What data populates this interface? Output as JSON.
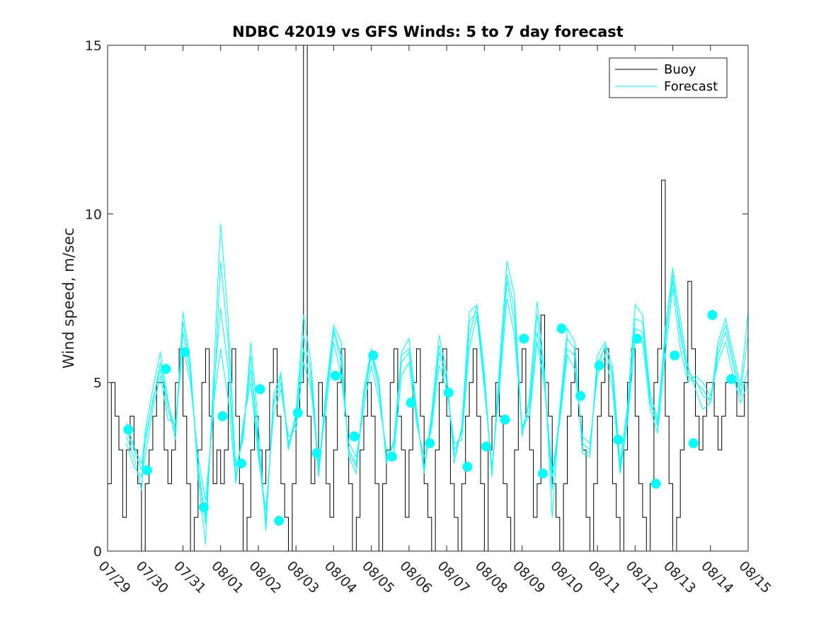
{
  "chart_data": {
    "type": "line",
    "title": "NDBC 42019 vs GFS Winds: 5 to 7 day forecast",
    "xlabel": "",
    "ylabel": "Wind speed, m/sec",
    "x_tick_labels": [
      "07/29",
      "07/30",
      "07/31",
      "08/01",
      "08/02",
      "08/03",
      "08/04",
      "08/05",
      "08/06",
      "08/07",
      "08/08",
      "08/09",
      "08/10",
      "08/11",
      "08/12",
      "08/13",
      "08/14",
      "08/15"
    ],
    "xlim": [
      "07/29",
      "08/15"
    ],
    "ylim": [
      0,
      15
    ],
    "y_ticks": [
      0,
      5,
      10,
      15
    ],
    "grid": false,
    "legend": {
      "placement": "top-right",
      "entries": [
        "Buoy",
        "Forecast"
      ]
    },
    "colors": {
      "Buoy": "#000000",
      "Forecast": "#00ffff",
      "markers": "#00ffff"
    },
    "series": [
      {
        "name": "Buoy",
        "x_days_from_07_29": [
          0.0,
          0.1,
          0.2,
          0.3,
          0.4,
          0.5,
          0.6,
          0.7,
          0.8,
          0.9,
          1.0,
          1.1,
          1.2,
          1.3,
          1.4,
          1.5,
          1.6,
          1.7,
          1.8,
          1.9,
          2.0,
          2.1,
          2.2,
          2.3,
          2.4,
          2.5,
          2.6,
          2.7,
          2.8,
          2.9,
          3.0,
          3.1,
          3.2,
          3.3,
          3.4,
          3.5,
          3.6,
          3.7,
          3.8,
          3.9,
          4.0,
          4.1,
          4.2,
          4.3,
          4.4,
          4.5,
          4.6,
          4.7,
          4.8,
          4.9,
          5.0,
          5.1,
          5.2,
          5.3,
          5.4,
          5.5,
          5.6,
          5.7,
          5.8,
          5.9,
          6.0,
          6.1,
          6.2,
          6.3,
          6.4,
          6.5,
          6.6,
          6.7,
          6.8,
          6.9,
          7.0,
          7.1,
          7.2,
          7.3,
          7.4,
          7.5,
          7.6,
          7.7,
          7.8,
          7.9,
          8.0,
          8.1,
          8.2,
          8.3,
          8.4,
          8.5,
          8.6,
          8.7,
          8.8,
          8.9,
          9.0,
          9.1,
          9.2,
          9.3,
          9.4,
          9.5,
          9.6,
          9.7,
          9.8,
          9.9,
          10.0,
          10.1,
          10.2,
          10.3,
          10.4,
          10.5,
          10.6,
          10.7,
          10.8,
          10.9,
          11.0,
          11.1,
          11.2,
          11.3,
          11.4,
          11.5,
          11.6,
          11.7,
          11.8,
          11.9,
          12.0,
          12.1,
          12.2,
          12.3,
          12.4,
          12.5,
          12.6,
          12.7,
          12.8,
          12.9,
          13.0,
          13.1,
          13.2,
          13.3,
          13.4,
          13.5,
          13.6,
          13.7,
          13.8,
          13.9,
          14.0,
          14.1,
          14.2,
          14.3,
          14.4,
          14.5,
          14.6,
          14.7,
          14.8,
          14.9,
          15.0,
          15.1,
          15.2,
          15.3,
          15.4,
          15.5,
          15.6,
          15.7,
          15.8,
          15.9,
          16.0,
          16.1,
          16.2,
          16.3,
          16.4,
          16.5,
          16.6,
          16.7,
          16.8,
          16.9,
          17.0
        ],
        "values": [
          2,
          5,
          4,
          3,
          1,
          3,
          4,
          3,
          2,
          0,
          2,
          3,
          4,
          5,
          5,
          3,
          2,
          3,
          5,
          6,
          4,
          2,
          0,
          1,
          3,
          5,
          6,
          4,
          2,
          3,
          2,
          3,
          5,
          6,
          4,
          2,
          0,
          1,
          3,
          4,
          3,
          2,
          3,
          5,
          6,
          4,
          2,
          1,
          0,
          2,
          4,
          5,
          15,
          4,
          2,
          3,
          5,
          4,
          2,
          1,
          3,
          5,
          6,
          4,
          2,
          0,
          1,
          3,
          4,
          5,
          4,
          2,
          0,
          2,
          3,
          5,
          6,
          4,
          3,
          1,
          3,
          5,
          6,
          4,
          2,
          1,
          0,
          3,
          5,
          6,
          4,
          2,
          1,
          0,
          2,
          4,
          5,
          6,
          4,
          2,
          0,
          3,
          4,
          5,
          4,
          2,
          1,
          0,
          3,
          5,
          6,
          4,
          3,
          1,
          2,
          7,
          5,
          4,
          2,
          1,
          0,
          2,
          4,
          5,
          6,
          4,
          3,
          1,
          0,
          2,
          4,
          5,
          6,
          4,
          2,
          1,
          0,
          3,
          5,
          6,
          4,
          2,
          1,
          0,
          2,
          5,
          6,
          11,
          4,
          2,
          0,
          1,
          3,
          5,
          8,
          6,
          4,
          3,
          4,
          5,
          5,
          4,
          3,
          4,
          5,
          5,
          5,
          4,
          4,
          5,
          5
        ]
      },
      {
        "name": "Forecast",
        "x_days_from_07_29": [
          0.5,
          0.7,
          0.9,
          1.0,
          1.2,
          1.4,
          1.6,
          1.8,
          2.0,
          2.2,
          2.4,
          2.6,
          2.8,
          3.0,
          3.2,
          3.4,
          3.6,
          3.8,
          4.0,
          4.2,
          4.4,
          4.6,
          4.8,
          5.0,
          5.2,
          5.4,
          5.6,
          5.8,
          6.0,
          6.2,
          6.4,
          6.6,
          6.8,
          7.0,
          7.2,
          7.4,
          7.6,
          7.8,
          8.0,
          8.2,
          8.4,
          8.6,
          8.8,
          9.0,
          9.2,
          9.4,
          9.6,
          9.8,
          10.0,
          10.2,
          10.4,
          10.6,
          10.8,
          11.0,
          11.2,
          11.4,
          11.6,
          11.8,
          12.0,
          12.2,
          12.4,
          12.6,
          12.8,
          13.0,
          13.2,
          13.4,
          13.6,
          13.8,
          14.0,
          14.2,
          14.4,
          14.6,
          14.8,
          15.0,
          15.2,
          15.4,
          15.6,
          15.8,
          16.0,
          16.2,
          16.4,
          16.6,
          16.8,
          17.0
        ],
        "member_values": [
          [
            3.6,
            3.0,
            2.4,
            3.2,
            4.5,
            5.4,
            4.2,
            3.5,
            6.5,
            5.2,
            2.5,
            1.0,
            4.3,
            6.0,
            4.5,
            2.1,
            3.6,
            5.4,
            3.0,
            0.9,
            4.3,
            5.0,
            3.2,
            3.8,
            6.0,
            5.0,
            2.3,
            4.5,
            6.5,
            5.6,
            3.0,
            2.6,
            4.5,
            5.8,
            4.8,
            2.8,
            3.1,
            5.6,
            5.9,
            4.0,
            2.5,
            3.8,
            5.9,
            5.0,
            3.0,
            3.5,
            6.4,
            7.3,
            5.0,
            2.3,
            5.0,
            8.0,
            6.8,
            3.5,
            4.2,
            6.5,
            5.0,
            2.2,
            4.0,
            6.0,
            5.8,
            3.2,
            3.0,
            5.4,
            6.1,
            5.1,
            2.5,
            4.0,
            6.6,
            6.5,
            4.4,
            3.7,
            6.2,
            8.2,
            6.4,
            5.2,
            5.0,
            4.8,
            4.4,
            5.8,
            6.5,
            5.5,
            4.6,
            5.4
          ],
          [
            3.4,
            2.8,
            1.8,
            3.6,
            4.8,
            5.9,
            4.5,
            3.3,
            7.1,
            5.6,
            2.2,
            0.2,
            4.9,
            9.7,
            6.9,
            2.5,
            3.3,
            6.2,
            3.8,
            0.6,
            4.6,
            5.3,
            3.1,
            4.1,
            7.0,
            5.6,
            2.4,
            4.8,
            6.7,
            6.2,
            2.8,
            2.3,
            4.8,
            6.0,
            5.1,
            2.6,
            3.3,
            5.9,
            6.3,
            4.2,
            2.3,
            4.1,
            6.4,
            5.3,
            2.6,
            3.7,
            7.1,
            7.3,
            5.3,
            2.2,
            5.5,
            8.6,
            7.6,
            3.4,
            4.6,
            7.4,
            5.3,
            1.0,
            4.2,
            6.6,
            6.2,
            2.9,
            2.8,
            5.8,
            6.2,
            5.5,
            2.6,
            4.3,
            7.3,
            7.0,
            4.7,
            3.9,
            6.6,
            8.4,
            6.9,
            5.5,
            4.8,
            4.2,
            4.4,
            6.2,
            6.9,
            5.9,
            4.9,
            7.1
          ],
          [
            3.2,
            2.5,
            2.2,
            2.8,
            4.2,
            5.2,
            3.9,
            3.8,
            6.0,
            5.0,
            2.8,
            1.5,
            4.0,
            8.6,
            6.2,
            2.0,
            3.8,
            5.0,
            2.8,
            1.2,
            4.0,
            4.8,
            3.4,
            3.6,
            5.6,
            4.8,
            2.6,
            4.2,
            6.2,
            5.2,
            3.2,
            2.8,
            4.2,
            5.5,
            4.5,
            3.0,
            2.8,
            5.2,
            5.6,
            3.8,
            2.8,
            3.6,
            5.5,
            4.8,
            3.2,
            3.3,
            6.0,
            7.0,
            4.8,
            2.5,
            4.8,
            7.5,
            6.4,
            3.7,
            4.0,
            6.2,
            4.8,
            2.4,
            3.8,
            5.8,
            5.4,
            3.4,
            3.2,
            5.2,
            5.8,
            4.8,
            2.3,
            3.8,
            6.2,
            6.2,
            4.2,
            3.5,
            5.8,
            7.8,
            6.0,
            5.0,
            5.2,
            5.0,
            4.6,
            5.6,
            6.2,
            5.2,
            4.4,
            5.0
          ],
          [
            3.8,
            3.1,
            2.6,
            3.4,
            4.4,
            5.6,
            4.4,
            3.6,
            6.8,
            5.4,
            2.4,
            0.8,
            4.6,
            7.2,
            5.4,
            2.2,
            3.5,
            5.8,
            3.2,
            0.8,
            4.4,
            5.2,
            3.0,
            4.0,
            6.4,
            5.3,
            2.2,
            4.6,
            6.6,
            5.8,
            2.9,
            2.5,
            4.6,
            5.9,
            5.0,
            2.7,
            3.2,
            5.8,
            6.0,
            4.1,
            2.4,
            3.9,
            6.1,
            5.1,
            2.8,
            3.6,
            6.8,
            7.1,
            5.1,
            2.3,
            5.2,
            8.2,
            7.2,
            3.6,
            4.4,
            7.0,
            5.1,
            1.8,
            4.1,
            6.3,
            6.0,
            3.0,
            2.9,
            5.6,
            6.0,
            5.3,
            2.4,
            4.1,
            6.9,
            6.8,
            4.5,
            3.8,
            6.4,
            8.0,
            6.6,
            5.3,
            5.1,
            4.6,
            4.5,
            6.0,
            6.7,
            5.7,
            4.7,
            6.4
          ]
        ]
      }
    ],
    "forecast_markers": {
      "x_days_from_07_29": [
        0.55,
        1.05,
        1.55,
        2.05,
        2.55,
        3.05,
        3.55,
        4.05,
        4.55,
        5.05,
        5.55,
        6.05,
        6.55,
        7.05,
        7.55,
        8.05,
        8.55,
        9.05,
        9.55,
        10.05,
        10.55,
        11.05,
        11.55,
        12.05,
        12.55,
        13.05,
        13.55,
        14.05,
        14.55,
        15.05,
        15.55,
        16.05,
        16.55
      ],
      "values": [
        3.6,
        2.4,
        5.4,
        5.9,
        1.3,
        4.0,
        2.6,
        4.8,
        0.9,
        4.1,
        2.9,
        5.2,
        3.4,
        5.8,
        2.8,
        4.4,
        3.2,
        4.7,
        2.5,
        3.1,
        3.9,
        6.3,
        2.3,
        6.6,
        4.6,
        5.5,
        3.3,
        6.3,
        2.0,
        5.8,
        3.2,
        7.0,
        5.1
      ]
    }
  }
}
